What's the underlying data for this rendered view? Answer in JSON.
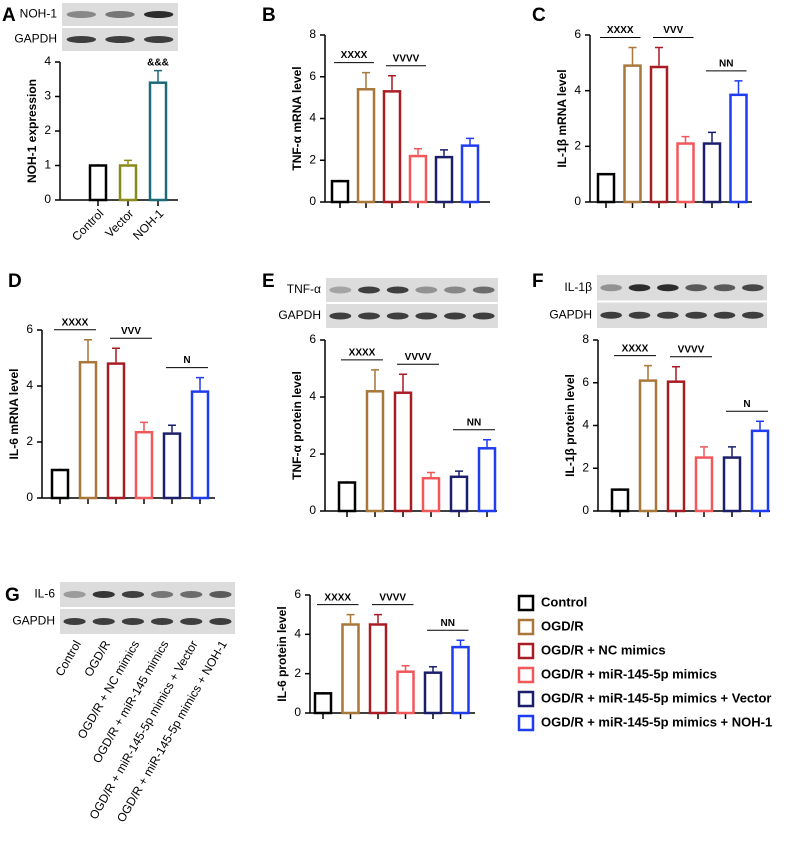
{
  "chart_data": [
    {
      "label": "A",
      "type": "bar",
      "blot": [
        "NOH-1",
        "GAPDH"
      ],
      "categories": [
        "Control",
        "Vector",
        "NOH-1"
      ],
      "ylabel": "NOH-1 expression",
      "ylim": [
        0,
        4
      ],
      "yticks": [
        0,
        1,
        2,
        3,
        4
      ],
      "values": [
        1,
        1,
        3.4
      ],
      "errors": [
        0,
        0.15,
        0.35
      ],
      "colors": [
        "#000000",
        "#8a8a1a",
        "#1e6b78"
      ],
      "annotations": [
        "&&&"
      ]
    },
    {
      "label": "B",
      "type": "bar",
      "ylabel": "TNF-α mRNA level",
      "ylim": [
        0,
        8
      ],
      "yticks": [
        0,
        2,
        4,
        6,
        8
      ],
      "values": [
        1,
        5.4,
        5.3,
        2.2,
        2.15,
        2.7
      ],
      "errors": [
        0,
        0.8,
        0.75,
        0.35,
        0.35,
        0.35
      ],
      "colors": [
        "#000000",
        "#a8773a",
        "#a81c24",
        "#f2575a",
        "#1b1f6b",
        "#1f3cf0"
      ],
      "annotations": [
        "XXXX",
        "VVVV"
      ]
    },
    {
      "label": "C",
      "type": "bar",
      "ylabel": "IL-1β mRNA level",
      "ylim": [
        0,
        6
      ],
      "yticks": [
        0,
        2,
        4,
        6
      ],
      "values": [
        1,
        4.9,
        4.85,
        2.1,
        2.1,
        3.85
      ],
      "errors": [
        0,
        0.65,
        0.7,
        0.25,
        0.4,
        0.5
      ],
      "colors": [
        "#000000",
        "#a8773a",
        "#a81c24",
        "#f2575a",
        "#1b1f6b",
        "#1f3cf0"
      ],
      "annotations": [
        "XXXX",
        "VVV",
        "NN"
      ]
    },
    {
      "label": "D",
      "type": "bar",
      "ylabel": "IL-6 mRNA level",
      "ylim": [
        0,
        6
      ],
      "yticks": [
        0,
        2,
        4,
        6
      ],
      "values": [
        1,
        4.85,
        4.8,
        2.35,
        2.3,
        3.8
      ],
      "errors": [
        0,
        0.8,
        0.55,
        0.35,
        0.3,
        0.5
      ],
      "colors": [
        "#000000",
        "#a8773a",
        "#a81c24",
        "#f2575a",
        "#1b1f6b",
        "#1f3cf0"
      ],
      "annotations": [
        "XXXX",
        "VVV",
        "N"
      ]
    },
    {
      "label": "E",
      "type": "bar",
      "blot": [
        "TNF-α",
        "GAPDH"
      ],
      "ylabel": "TNF-α protein level",
      "ylim": [
        0,
        6
      ],
      "yticks": [
        0,
        2,
        4,
        6
      ],
      "values": [
        1,
        4.2,
        4.15,
        1.15,
        1.2,
        2.2
      ],
      "errors": [
        0,
        0.75,
        0.65,
        0.2,
        0.2,
        0.3
      ],
      "colors": [
        "#000000",
        "#a8773a",
        "#a81c24",
        "#f2575a",
        "#1b1f6b",
        "#1f3cf0"
      ],
      "annotations": [
        "XXXX",
        "VVVV",
        "NN"
      ]
    },
    {
      "label": "F",
      "type": "bar",
      "blot": [
        "IL-1β",
        "GAPDH"
      ],
      "ylabel": "IL-1β protein level",
      "ylim": [
        0,
        8
      ],
      "yticks": [
        0,
        2,
        4,
        6,
        8
      ],
      "values": [
        1,
        6.1,
        6.05,
        2.5,
        2.5,
        3.75
      ],
      "errors": [
        0,
        0.7,
        0.7,
        0.5,
        0.5,
        0.45
      ],
      "colors": [
        "#000000",
        "#a8773a",
        "#a81c24",
        "#f2575a",
        "#1b1f6b",
        "#1f3cf0"
      ],
      "annotations": [
        "XXXX",
        "VVVV",
        "N"
      ]
    },
    {
      "label": "G",
      "type": "bar",
      "blot": [
        "IL-6",
        "GAPDH"
      ],
      "blot_lanes": [
        "Control",
        "OGD/R",
        "OGD/R + NC mimics",
        "OGD/R + miR-145 mimics",
        "OGD/R + miR-145-5p mimics + Vector",
        "OGD/R + miR-145-5p mimics + NOH-1"
      ],
      "ylabel": "IL-6 protein level",
      "ylim": [
        0,
        6
      ],
      "yticks": [
        0,
        2,
        4,
        6
      ],
      "values": [
        1,
        4.5,
        4.5,
        2.1,
        2.05,
        3.35
      ],
      "errors": [
        0,
        0.5,
        0.5,
        0.3,
        0.3,
        0.35
      ],
      "colors": [
        "#000000",
        "#a8773a",
        "#a81c24",
        "#f2575a",
        "#1b1f6b",
        "#1f3cf0"
      ],
      "annotations": [
        "XXXX",
        "VVVV",
        "NN"
      ],
      "legend": [
        "Control",
        "OGD/R",
        "OGD/R + NC mimics",
        "OGD/R + miR-145-5p mimics",
        "OGD/R + miR-145-5p mimics + Vector",
        "OGD/R + miR-145-5p mimics + NOH-1"
      ]
    }
  ]
}
